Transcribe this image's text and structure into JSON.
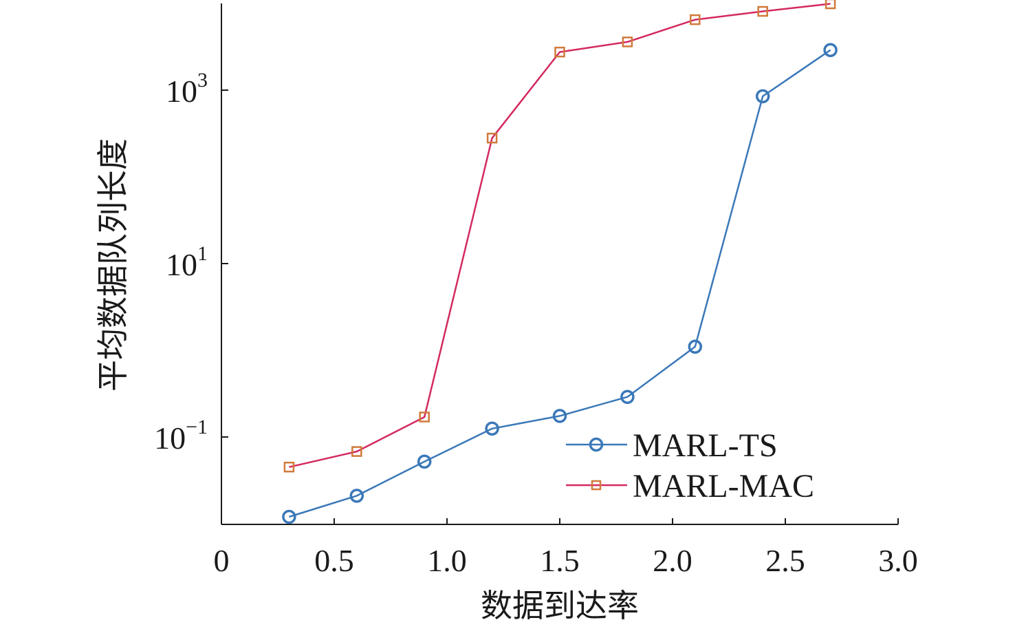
{
  "chart_data": {
    "type": "line",
    "title": "",
    "xlabel": "数据到达率",
    "ylabel": "平均数据队列长度",
    "xlim": [
      0,
      3.0
    ],
    "ylim_log10": [
      -2,
      4
    ],
    "yscale": "log",
    "x_ticks": [
      "0",
      "0.5",
      "1.0",
      "1.5",
      "2.0",
      "2.5",
      "3.0"
    ],
    "x_tick_values": [
      0,
      0.5,
      1.0,
      1.5,
      2.0,
      2.5,
      3.0
    ],
    "y_ticks": [
      {
        "base": "10",
        "exp": "3",
        "value": 1000
      },
      {
        "base": "10",
        "exp": "1",
        "value": 10
      },
      {
        "base": "10",
        "exp": "−1",
        "value": 0.1
      }
    ],
    "grid": false,
    "legend_position": "bottom-right",
    "x": [
      0.3,
      0.6,
      0.9,
      1.2,
      1.5,
      1.8,
      2.1,
      2.4,
      2.7
    ],
    "series": [
      {
        "name": "MARL-TS",
        "color": "#3a78b8",
        "line_color": "#555a66",
        "marker": "circle",
        "values": [
          0.012,
          0.021,
          0.052,
          0.125,
          0.175,
          0.29,
          1.1,
          850,
          2900
        ]
      },
      {
        "name": "MARL-MAC",
        "color": "#d32a5e",
        "marker_color": "#d07a3a",
        "marker": "square",
        "values": [
          0.045,
          0.068,
          0.17,
          280,
          2750,
          3600,
          6500,
          8100,
          9900
        ]
      }
    ]
  }
}
